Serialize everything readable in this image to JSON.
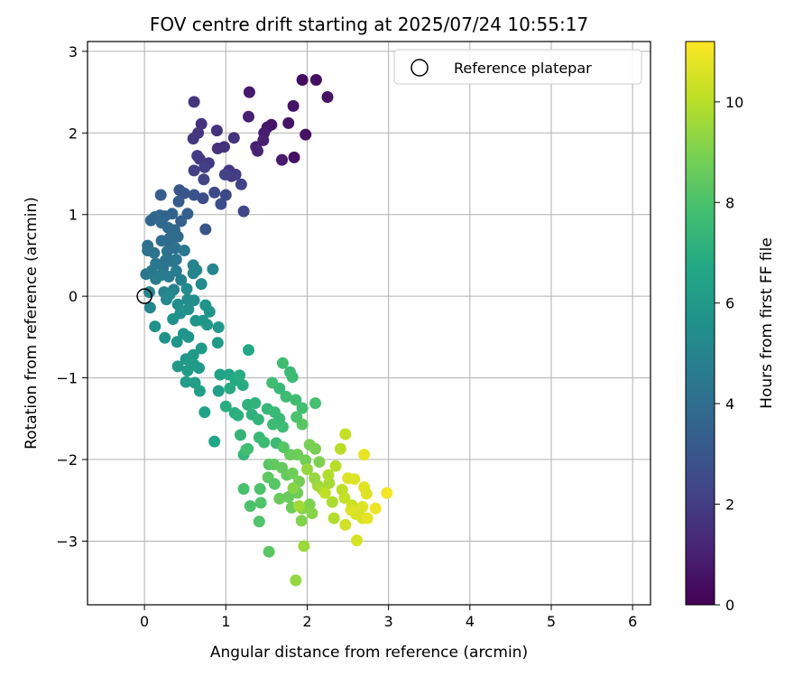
{
  "chart_data": {
    "type": "scatter",
    "title": "FOV centre drift starting at 2025/07/24 10:55:17",
    "xlabel": "Angular distance from reference (arcmin)",
    "ylabel": "Rotation from reference (arcmin)",
    "xlim": [
      -0.7,
      6.22
    ],
    "ylim": [
      -3.78,
      3.12
    ],
    "xticks": [
      0,
      1,
      2,
      3,
      4,
      5,
      6
    ],
    "yticks": [
      -3,
      -2,
      -1,
      0,
      1,
      2,
      3
    ],
    "grid": true,
    "legend": {
      "position": "top-right",
      "entries": [
        {
          "label": "Reference platepar",
          "marker": "open-circle"
        }
      ]
    },
    "reference_point": {
      "x": 0,
      "y": 0
    },
    "colorbar": {
      "label": "Hours from first FF file",
      "min": 0,
      "max": 11.2,
      "ticks": [
        0,
        2,
        4,
        6,
        8,
        10
      ],
      "colormap": "viridis"
    },
    "point_columns": [
      "x",
      "y",
      "hours"
    ],
    "points": [
      [
        1.94,
        2.65,
        0.3
      ],
      [
        2.11,
        2.65,
        0.4
      ],
      [
        2.25,
        2.44,
        0.5
      ],
      [
        1.83,
        2.33,
        0.6
      ],
      [
        1.29,
        2.5,
        0.8
      ],
      [
        1.51,
        2.07,
        0.7
      ],
      [
        1.56,
        2.1,
        0.6
      ],
      [
        1.77,
        2.12,
        0.6
      ],
      [
        1.98,
        1.98,
        0.5
      ],
      [
        1.84,
        1.7,
        0.5
      ],
      [
        1.69,
        1.67,
        0.8
      ],
      [
        1.47,
        2.0,
        0.9
      ],
      [
        1.46,
        1.91,
        1.0
      ],
      [
        1.37,
        1.83,
        1.0
      ],
      [
        1.39,
        1.78,
        1.1
      ],
      [
        1.28,
        2.2,
        1.0
      ],
      [
        0.61,
        2.38,
        1.7
      ],
      [
        0.7,
        2.11,
        1.6
      ],
      [
        0.6,
        1.93,
        1.8
      ],
      [
        0.66,
        2.0,
        1.8
      ],
      [
        0.89,
        2.03,
        1.6
      ],
      [
        0.98,
        1.83,
        1.6
      ],
      [
        0.9,
        1.81,
        1.6
      ],
      [
        1.1,
        1.94,
        1.6
      ],
      [
        0.65,
        1.72,
        1.9
      ],
      [
        0.68,
        1.68,
        1.9
      ],
      [
        0.79,
        1.63,
        1.9
      ],
      [
        0.61,
        1.54,
        2.1
      ],
      [
        0.74,
        1.58,
        2.1
      ],
      [
        1.04,
        1.54,
        1.8
      ],
      [
        1.07,
        1.47,
        1.9
      ],
      [
        1.12,
        1.49,
        2.0
      ],
      [
        1.19,
        1.37,
        2.2
      ],
      [
        1.22,
        1.04,
        2.4
      ],
      [
        1.0,
        1.24,
        2.5
      ],
      [
        0.99,
        1.49,
        2.2
      ],
      [
        0.73,
        1.43,
        2.3
      ],
      [
        0.72,
        1.2,
        2.6
      ],
      [
        0.86,
        1.27,
        2.5
      ],
      [
        0.94,
        1.13,
        2.6
      ],
      [
        0.75,
        0.82,
        3.0
      ],
      [
        0.61,
        1.24,
        2.9
      ],
      [
        0.43,
        1.3,
        3.0
      ],
      [
        0.49,
        1.26,
        3.0
      ],
      [
        0.2,
        1.24,
        3.3
      ],
      [
        0.42,
        1.16,
        3.2
      ],
      [
        0.53,
        1.01,
        3.4
      ],
      [
        0.45,
        0.92,
        3.5
      ],
      [
        0.34,
        1.01,
        3.5
      ],
      [
        0.25,
        0.98,
        3.6
      ],
      [
        0.19,
        0.99,
        3.6
      ],
      [
        0.13,
        0.97,
        3.7
      ],
      [
        0.08,
        0.93,
        3.7
      ],
      [
        0.21,
        0.9,
        3.8
      ],
      [
        0.37,
        0.81,
        3.8
      ],
      [
        0.41,
        0.73,
        3.9
      ],
      [
        0.29,
        0.84,
        3.9
      ],
      [
        0.32,
        0.63,
        4.0
      ],
      [
        0.28,
        0.55,
        4.1
      ],
      [
        0.38,
        0.59,
        4.1
      ],
      [
        0.31,
        0.71,
        4.0
      ],
      [
        0.21,
        0.68,
        4.0
      ],
      [
        0.04,
        0.62,
        4.1
      ],
      [
        0.04,
        0.56,
        4.2
      ],
      [
        0.12,
        0.53,
        4.2
      ],
      [
        0.26,
        0.44,
        4.3
      ],
      [
        0.33,
        0.43,
        4.3
      ],
      [
        0.23,
        0.35,
        4.4
      ],
      [
        0.14,
        0.4,
        4.4
      ],
      [
        0.09,
        0.31,
        4.5
      ],
      [
        0.02,
        0.27,
        4.5
      ],
      [
        0.14,
        0.21,
        4.6
      ],
      [
        0.21,
        0.26,
        4.6
      ],
      [
        0.3,
        0.24,
        4.6
      ],
      [
        0.39,
        0.31,
        4.6
      ],
      [
        0.49,
        0.56,
        4.5
      ],
      [
        0.39,
        0.45,
        4.5
      ],
      [
        0.45,
        0.2,
        4.8
      ],
      [
        0.36,
        0.08,
        4.9
      ],
      [
        0.24,
        0.05,
        5.0
      ],
      [
        0.06,
        0.05,
        5.0
      ],
      [
        0.07,
        -0.14,
        5.1
      ],
      [
        0.27,
        -0.04,
        5.2
      ],
      [
        0.31,
        0.02,
        5.2
      ],
      [
        0.6,
        0.28,
        5.0
      ],
      [
        0.6,
        0.38,
        5.0
      ],
      [
        0.64,
        0.32,
        5.0
      ],
      [
        0.84,
        0.33,
        5.1
      ],
      [
        0.7,
        0.15,
        5.3
      ],
      [
        0.52,
        0.09,
        5.3
      ],
      [
        0.53,
        -0.04,
        5.4
      ],
      [
        0.61,
        -0.05,
        5.4
      ],
      [
        0.54,
        -0.16,
        5.5
      ],
      [
        0.41,
        -0.1,
        5.5
      ],
      [
        0.44,
        -0.21,
        5.6
      ],
      [
        0.35,
        -0.28,
        5.6
      ],
      [
        0.13,
        -0.37,
        5.6
      ],
      [
        0.25,
        -0.51,
        5.7
      ],
      [
        0.4,
        -0.56,
        5.8
      ],
      [
        0.48,
        -0.46,
        5.8
      ],
      [
        0.54,
        -0.5,
        5.8
      ],
      [
        0.63,
        -0.3,
        5.8
      ],
      [
        0.75,
        -0.11,
        5.7
      ],
      [
        0.8,
        -0.19,
        5.8
      ],
      [
        0.72,
        -0.3,
        5.9
      ],
      [
        0.77,
        -0.35,
        5.9
      ],
      [
        0.91,
        -0.38,
        5.9
      ],
      [
        0.9,
        -0.57,
        6.0
      ],
      [
        0.7,
        -0.64,
        6.0
      ],
      [
        0.6,
        -0.72,
        6.0
      ],
      [
        0.51,
        -0.77,
        6.0
      ],
      [
        0.41,
        -0.86,
        6.0
      ],
      [
        0.53,
        -0.91,
        6.1
      ],
      [
        0.61,
        -0.84,
        6.1
      ],
      [
        0.67,
        -0.88,
        6.1
      ],
      [
        0.51,
        -1.05,
        6.2
      ],
      [
        0.62,
        -1.06,
        6.2
      ],
      [
        0.68,
        -1.16,
        6.3
      ],
      [
        0.74,
        -1.42,
        6.4
      ],
      [
        0.86,
        -1.78,
        6.6
      ],
      [
        0.91,
        -1.16,
        6.3
      ],
      [
        0.93,
        -0.96,
        6.5
      ],
      [
        1.04,
        -0.96,
        6.6
      ],
      [
        1.28,
        -0.66,
        6.7
      ],
      [
        1.12,
        -1.03,
        6.8
      ],
      [
        1.17,
        -0.97,
        6.9
      ],
      [
        1.21,
        -1.09,
        6.9
      ],
      [
        1.05,
        -1.13,
        6.9
      ],
      [
        1.0,
        -1.35,
        7.0
      ],
      [
        1.11,
        -1.43,
        7.0
      ],
      [
        1.15,
        -1.46,
        7.1
      ],
      [
        1.27,
        -1.33,
        7.1
      ],
      [
        1.32,
        -1.45,
        7.1
      ],
      [
        1.36,
        -1.31,
        7.2
      ],
      [
        1.4,
        -1.51,
        7.3
      ],
      [
        1.18,
        -1.7,
        7.3
      ],
      [
        1.22,
        -1.94,
        7.4
      ],
      [
        1.27,
        -1.87,
        7.5
      ],
      [
        1.41,
        -1.73,
        7.5
      ],
      [
        1.47,
        -1.79,
        7.6
      ],
      [
        1.62,
        -1.8,
        7.6
      ],
      [
        1.51,
        -1.38,
        7.4
      ],
      [
        1.6,
        -1.42,
        7.5
      ],
      [
        1.66,
        -1.5,
        7.5
      ],
      [
        1.7,
        -1.6,
        7.6
      ],
      [
        1.58,
        -1.57,
        7.6
      ],
      [
        1.66,
        -1.13,
        7.5
      ],
      [
        1.79,
        -0.93,
        7.5
      ],
      [
        1.82,
        -0.99,
        7.6
      ],
      [
        1.74,
        -1.23,
        7.6
      ],
      [
        1.86,
        -1.27,
        7.7
      ],
      [
        1.94,
        -1.37,
        7.8
      ],
      [
        2.1,
        -1.31,
        7.9
      ],
      [
        1.57,
        -1.06,
        7.7
      ],
      [
        1.7,
        -0.82,
        7.7
      ],
      [
        1.25,
        -1.88,
        7.8
      ],
      [
        1.22,
        -2.36,
        7.9
      ],
      [
        1.3,
        -2.57,
        8.0
      ],
      [
        1.42,
        -2.36,
        8.0
      ],
      [
        1.43,
        -2.53,
        8.1
      ],
      [
        1.41,
        -2.76,
        8.1
      ],
      [
        1.53,
        -3.13,
        8.3
      ],
      [
        1.53,
        -2.06,
        8.3
      ],
      [
        1.52,
        -2.22,
        8.4
      ],
      [
        1.59,
        -2.06,
        8.4
      ],
      [
        1.69,
        -2.1,
        8.5
      ],
      [
        1.75,
        -2.19,
        8.5
      ],
      [
        1.66,
        -2.48,
        8.6
      ],
      [
        1.77,
        -2.46,
        8.6
      ],
      [
        1.81,
        -2.59,
        8.7
      ],
      [
        1.88,
        -2.41,
        8.7
      ],
      [
        1.9,
        -2.27,
        8.8
      ],
      [
        1.82,
        -2.17,
        8.7
      ],
      [
        1.88,
        -1.94,
        8.7
      ],
      [
        1.98,
        -2.01,
        8.8
      ],
      [
        2.03,
        -1.82,
        8.9
      ],
      [
        2.1,
        -1.87,
        8.9
      ],
      [
        2.15,
        -2.03,
        9.0
      ],
      [
        2.03,
        -2.55,
        9.0
      ],
      [
        1.94,
        -2.6,
        9.1
      ],
      [
        1.93,
        -2.75,
        9.1
      ],
      [
        2.06,
        -2.66,
        9.2
      ],
      [
        1.86,
        -3.48,
        9.4
      ],
      [
        1.96,
        -3.06,
        9.5
      ],
      [
        1.9,
        -2.57,
        9.6
      ],
      [
        2.13,
        -2.32,
        9.6
      ],
      [
        2.19,
        -2.37,
        9.7
      ],
      [
        2.27,
        -2.29,
        9.7
      ],
      [
        2.31,
        -2.52,
        9.8
      ],
      [
        2.33,
        -2.72,
        9.9
      ],
      [
        2.26,
        -2.19,
        9.9
      ],
      [
        2.35,
        -2.08,
        10.0
      ],
      [
        2.41,
        -1.87,
        10.0
      ],
      [
        2.43,
        -2.37,
        10.1
      ],
      [
        2.46,
        -2.47,
        10.2
      ],
      [
        2.55,
        -2.56,
        10.3
      ],
      [
        2.47,
        -1.69,
        10.2
      ],
      [
        2.47,
        -2.8,
        10.4
      ],
      [
        2.61,
        -2.99,
        10.5
      ],
      [
        2.6,
        -2.67,
        10.5
      ],
      [
        2.68,
        -2.72,
        10.6
      ],
      [
        2.68,
        -2.58,
        10.6
      ],
      [
        2.73,
        -2.42,
        10.7
      ],
      [
        2.7,
        -2.34,
        10.7
      ],
      [
        2.74,
        -2.72,
        10.8
      ],
      [
        2.7,
        -1.94,
        10.8
      ],
      [
        2.84,
        -2.6,
        10.9
      ],
      [
        2.98,
        -2.41,
        11.0
      ],
      [
        2.5,
        -2.23,
        10.6
      ],
      [
        2.58,
        -2.24,
        10.6
      ],
      [
        2.54,
        -2.62,
        10.6
      ],
      [
        2.22,
        -2.41,
        10.1
      ],
      [
        2.0,
        -2.12,
        9.4
      ],
      [
        2.09,
        -2.23,
        9.4
      ],
      [
        1.83,
        -2.35,
        9.2
      ],
      [
        1.79,
        -1.94,
        8.6
      ],
      [
        1.71,
        -1.85,
        8.2
      ],
      [
        1.6,
        -2.3,
        8.2
      ],
      [
        1.94,
        -1.57,
        8.3
      ],
      [
        1.87,
        -1.48,
        8.0
      ]
    ]
  }
}
